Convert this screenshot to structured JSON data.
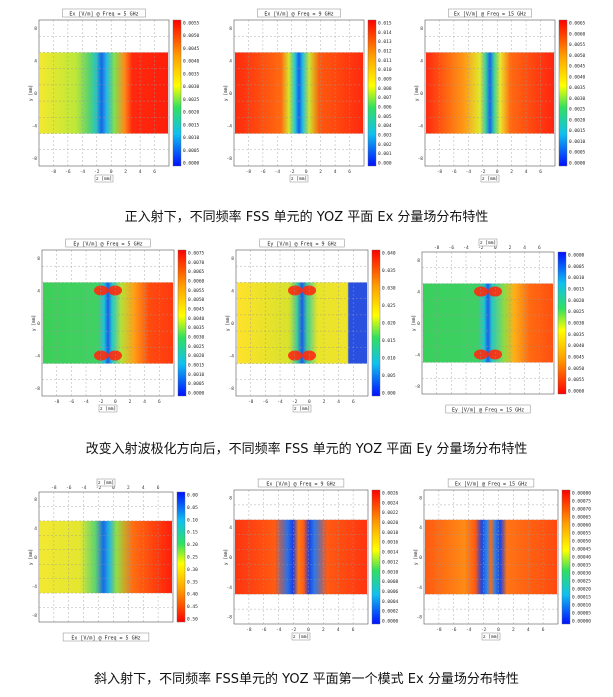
{
  "captions": [
    "正入射下，不同频率 FSS 单元的 YOZ 平面 Ex 分量场分布特性",
    "改变入射波极化方向后，不同频率 FSS 单元的 YOZ 平面 Ey 分量场分布特性",
    "斜入射下，不同频率 FSS单元的 YOZ 平面第一个模式 Ex 分量场分布特性"
  ],
  "chart_data": [
    {
      "type": "heatmap",
      "title": "Ex [V/m] @ Freq = 5 GHz",
      "xlabel": "z [mm]",
      "ylabel": "y [mm]",
      "xlim": [
        -9,
        9
      ],
      "ylim": [
        -9,
        9
      ],
      "xticks": [
        "-8",
        "-6",
        "-4",
        "-2",
        "0",
        "2",
        "4",
        "6"
      ],
      "yticks": [
        "8",
        "4",
        "0",
        "-4",
        "-8"
      ],
      "colorbar": [
        "0.0055",
        "0.0050",
        "0.0045",
        "0.0040",
        "0.0035",
        "0.0030",
        "0.0025",
        "0.0020",
        "0.0015",
        "0.0010",
        "0.0005",
        "0.0000"
      ]
    },
    {
      "type": "heatmap",
      "title": "Ex [V/m] @ Freq = 9 GHz",
      "xlabel": "z [mm]",
      "ylabel": "y [mm]",
      "xlim": [
        -9,
        9
      ],
      "ylim": [
        -9,
        9
      ],
      "xticks": [
        "-8",
        "-6",
        "-4",
        "-2",
        "0",
        "2",
        "4",
        "6"
      ],
      "yticks": [
        "8",
        "4",
        "0",
        "-4",
        "-8"
      ],
      "colorbar": [
        "0.015",
        "0.014",
        "0.013",
        "0.012",
        "0.011",
        "0.010",
        "0.009",
        "0.008",
        "0.007",
        "0.006",
        "0.005",
        "0.004",
        "0.003",
        "0.002",
        "0.001",
        "0.000"
      ]
    },
    {
      "type": "heatmap",
      "title": "Ex [V/m] @ Freq = 15 GHz",
      "xlabel": "z [mm]",
      "ylabel": "y [mm]",
      "xlim": [
        -9,
        9
      ],
      "ylim": [
        -9,
        9
      ],
      "xticks": [
        "-8",
        "-6",
        "-4",
        "-2",
        "0",
        "2",
        "4",
        "6"
      ],
      "yticks": [
        "8",
        "4",
        "0",
        "-4",
        "-8"
      ],
      "colorbar": [
        "0.0065",
        "0.0060",
        "0.0055",
        "0.0050",
        "0.0045",
        "0.0040",
        "0.0035",
        "0.0030",
        "0.0025",
        "0.0020",
        "0.0015",
        "0.0010",
        "0.0005",
        "0.0000"
      ]
    },
    {
      "type": "heatmap",
      "title": "Ey [V/m] @ Freq = 5 GHz",
      "xlabel": "z [mm]",
      "ylabel": "y [mm]",
      "xlim": [
        -9,
        9
      ],
      "ylim": [
        -9,
        9
      ],
      "xticks": [
        "-8",
        "-6",
        "-4",
        "-2",
        "0",
        "2",
        "4",
        "6"
      ],
      "yticks": [
        "8",
        "4",
        "0",
        "-4",
        "-8"
      ],
      "colorbar": [
        "0.0075",
        "0.0070",
        "0.0065",
        "0.0060",
        "0.0055",
        "0.0050",
        "0.0045",
        "0.0040",
        "0.0035",
        "0.0030",
        "0.0025",
        "0.0020",
        "0.0015",
        "0.0010",
        "0.0005",
        "0.0000"
      ]
    },
    {
      "type": "heatmap",
      "title": "Ey [V/m] @ Freq = 9 GHz",
      "xlabel": "z [mm]",
      "ylabel": "y [mm]",
      "xlim": [
        -9,
        9
      ],
      "ylim": [
        -9,
        9
      ],
      "xticks": [
        "-8",
        "-6",
        "-4",
        "-2",
        "0",
        "2",
        "4",
        "6"
      ],
      "yticks": [
        "8",
        "4",
        "0",
        "-4",
        "-8"
      ],
      "colorbar": [
        "0.040",
        "0.035",
        "0.030",
        "0.025",
        "0.020",
        "0.015",
        "0.010",
        "0.005",
        "0.000"
      ]
    },
    {
      "type": "heatmap",
      "title": "Ey [V/m] @ Freq = 15 GHz",
      "xlabel": "z [mm]",
      "ylabel": "y [mm]",
      "xlim": [
        -9,
        9
      ],
      "ylim": [
        -9,
        9
      ],
      "rotated": true,
      "xticks": [
        "-8",
        "-6",
        "-4",
        "-2",
        "0",
        "2",
        "4",
        "6"
      ],
      "yticks": [
        "8",
        "4",
        "0",
        "-4",
        "-8"
      ],
      "colorbar": [
        "0.0060",
        "0.0055",
        "0.0050",
        "0.0045",
        "0.0040",
        "0.0035",
        "0.0030",
        "0.0025",
        "0.0020",
        "0.0015",
        "0.0010",
        "0.0005",
        "0.0000"
      ]
    },
    {
      "type": "heatmap",
      "title": "Ex [V/m] @ Freq = 5 GHz",
      "xlabel": "z [mm]",
      "ylabel": "y [mm]",
      "xlim": [
        -9,
        9
      ],
      "ylim": [
        -9,
        9
      ],
      "rotated": true,
      "xticks": [
        "-8",
        "-6",
        "-4",
        "-2",
        "0",
        "2",
        "4",
        "6"
      ],
      "yticks": [
        "8",
        "4",
        "0",
        "-4",
        "-8"
      ],
      "colorbar": [
        "0.50",
        "0.45",
        "0.40",
        "0.35",
        "0.30",
        "0.25",
        "0.20",
        "0.15",
        "0.10",
        "0.05",
        "0.00"
      ]
    },
    {
      "type": "heatmap",
      "title": "Ex [V/m] @ Freq = 9 GHz",
      "xlabel": "z [mm]",
      "ylabel": "y [mm]",
      "xlim": [
        -9,
        9
      ],
      "ylim": [
        -9,
        9
      ],
      "xticks": [
        "-8",
        "-6",
        "-4",
        "-2",
        "0",
        "2",
        "4",
        "6"
      ],
      "yticks": [
        "8",
        "4",
        "0",
        "-4",
        "-8"
      ],
      "colorbar": [
        "0.0026",
        "0.0024",
        "0.0022",
        "0.0020",
        "0.0018",
        "0.0016",
        "0.0014",
        "0.0012",
        "0.0010",
        "0.0008",
        "0.0006",
        "0.0004",
        "0.0002",
        "0.0000"
      ]
    },
    {
      "type": "heatmap",
      "title": "Ex [V/m] @ Freq = 15 GHz",
      "xlabel": "z [mm]",
      "ylabel": "y [mm]",
      "xlim": [
        -9,
        9
      ],
      "ylim": [
        -9,
        9
      ],
      "xticks": [
        "-8",
        "-6",
        "-4",
        "-2",
        "0",
        "2",
        "4",
        "6"
      ],
      "yticks": [
        "8",
        "4",
        "0",
        "-4",
        "-8"
      ],
      "colorbar": [
        "0.00080",
        "0.00075",
        "0.00070",
        "0.00065",
        "0.00060",
        "0.00055",
        "0.00050",
        "0.00045",
        "0.00040",
        "0.00035",
        "0.00030",
        "0.00025",
        "0.00020",
        "0.00015",
        "0.00010",
        "0.00005",
        "0.00000"
      ]
    }
  ]
}
